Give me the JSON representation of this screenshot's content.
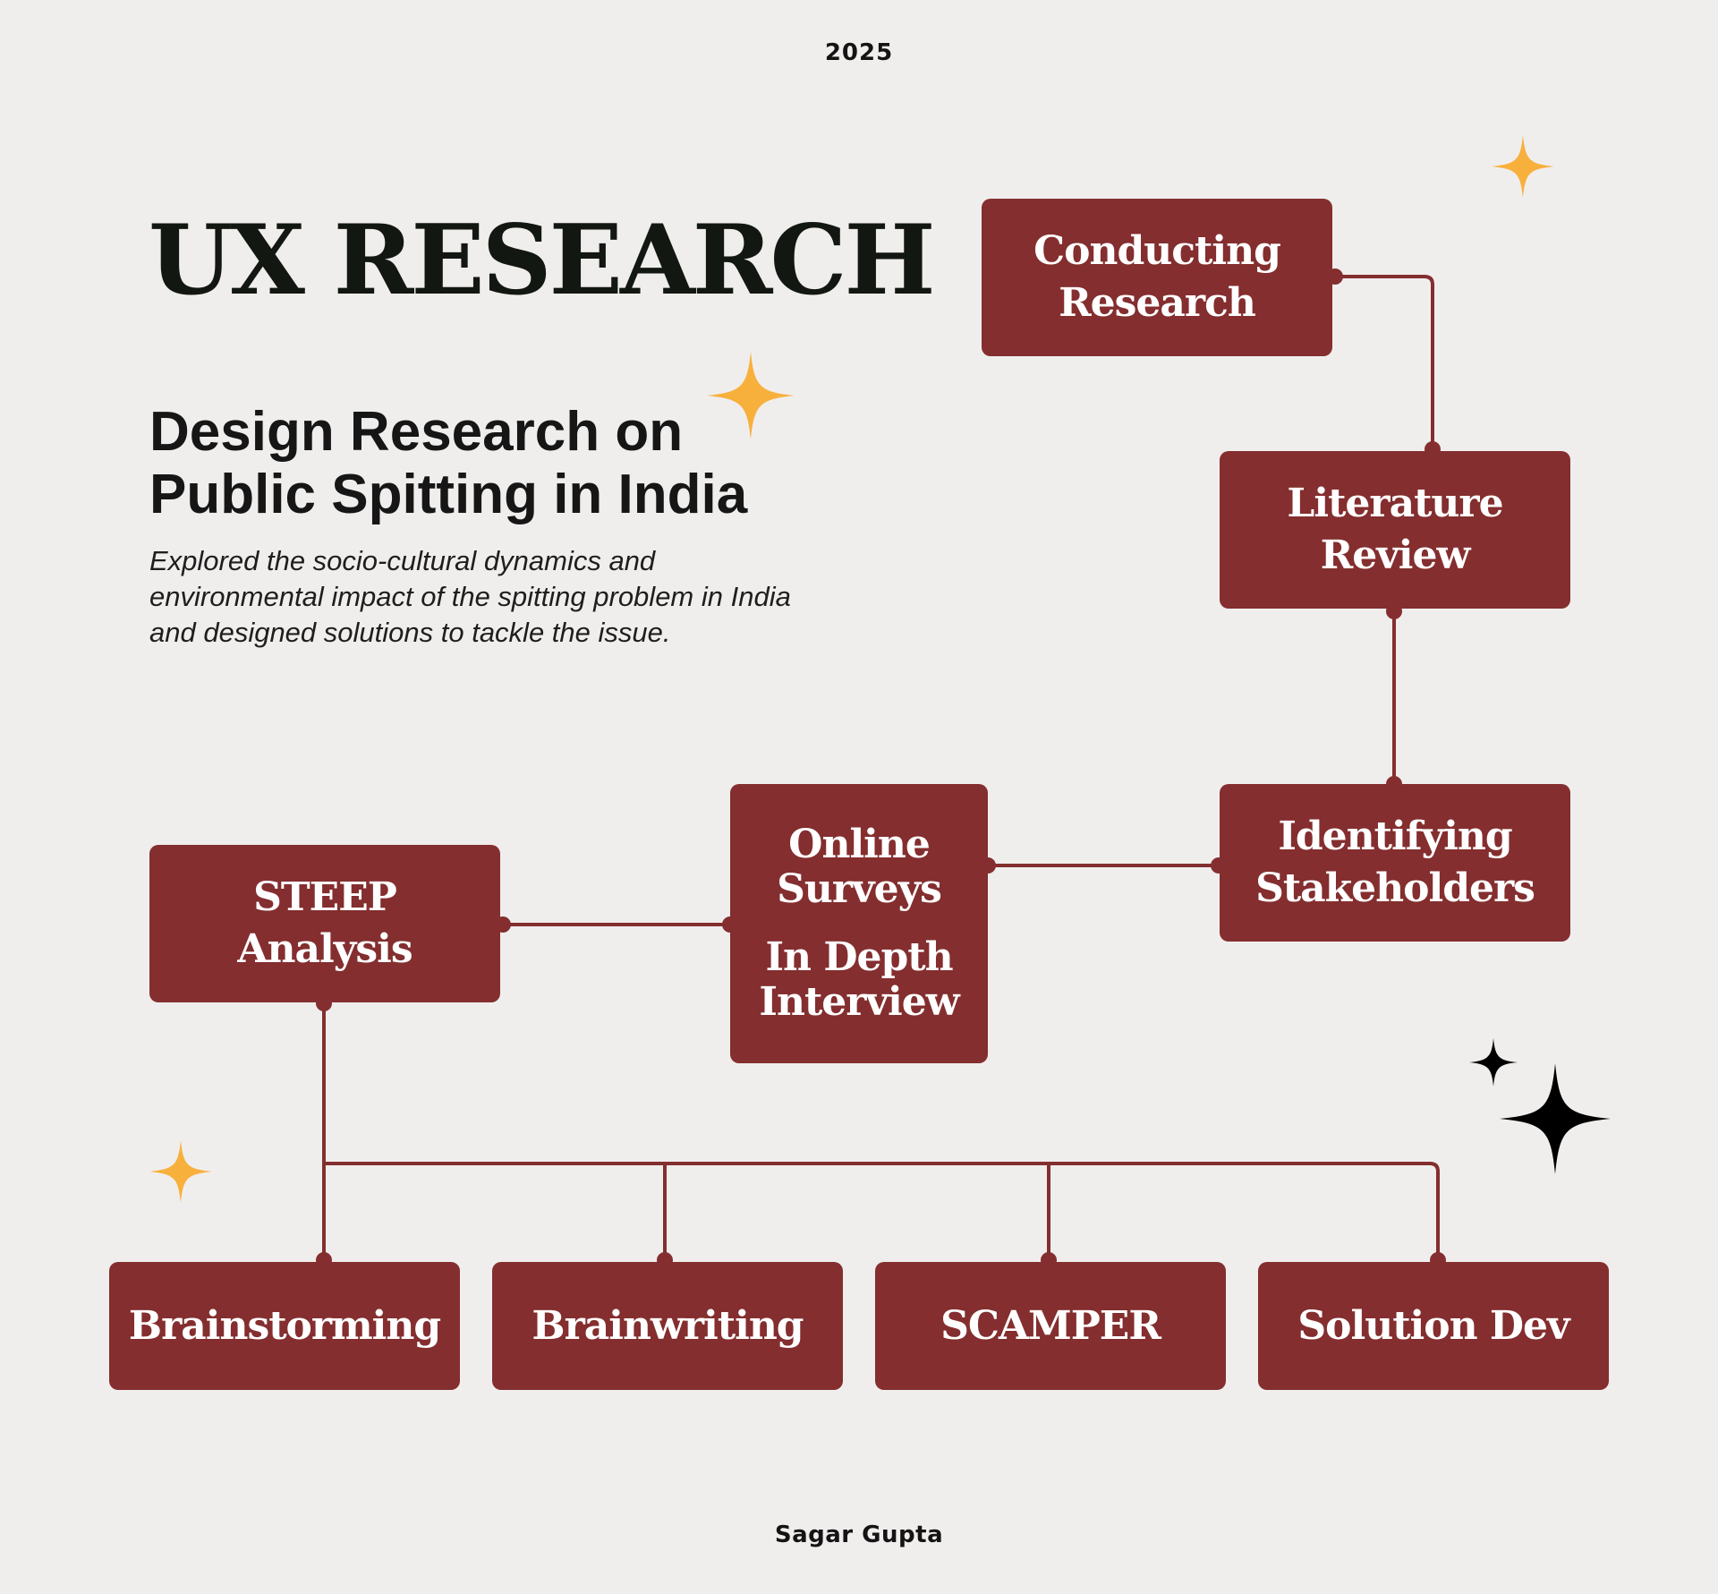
{
  "header": {
    "year": "2025"
  },
  "intro": {
    "title": "UX RESEARCH",
    "subtitle_line1": "Design Research on",
    "subtitle_line2": "Public Spitting in India",
    "description": "Explored the socio-cultural dynamics and environmental impact of the spitting problem in India and designed solutions to tackle the issue."
  },
  "diagram": {
    "nodes": {
      "conducting_research": [
        "Conducting",
        "Research"
      ],
      "literature_review": [
        "Literature",
        "Review"
      ],
      "identifying_stakeholders": [
        "Identifying",
        "Stakeholders"
      ],
      "online_surveys": [
        "Online",
        "Surveys"
      ],
      "in_depth_interview": [
        "In Depth",
        "Interview"
      ],
      "steep_analysis": [
        "STEEP",
        "Analysis"
      ],
      "brainstorming": "Brainstorming",
      "brainwriting": "Brainwriting",
      "scamper": "SCAMPER",
      "solution_dev": "Solution Dev"
    },
    "connections": [
      [
        "conducting_research",
        "literature_review"
      ],
      [
        "literature_review",
        "identifying_stakeholders"
      ],
      [
        "identifying_stakeholders",
        "online_surveys"
      ],
      [
        "online_surveys",
        "steep_analysis"
      ],
      [
        "steep_analysis",
        "brainstorming"
      ],
      [
        "steep_analysis",
        "brainwriting"
      ],
      [
        "steep_analysis",
        "scamper"
      ],
      [
        "steep_analysis",
        "solution_dev"
      ]
    ]
  },
  "footer": {
    "author": "Sagar Gupta"
  },
  "colors": {
    "background": "#f0eeed",
    "node": "#842e2f",
    "node_text": "#ffffff",
    "accent_star": "#f8b03d",
    "dark_star": "#000000",
    "heading": "#131712"
  },
  "decor": {
    "icons": [
      "sparkle-icon",
      "sparkle-icon",
      "sparkle-icon",
      "sparkle-icon",
      "sparkle-icon"
    ]
  }
}
